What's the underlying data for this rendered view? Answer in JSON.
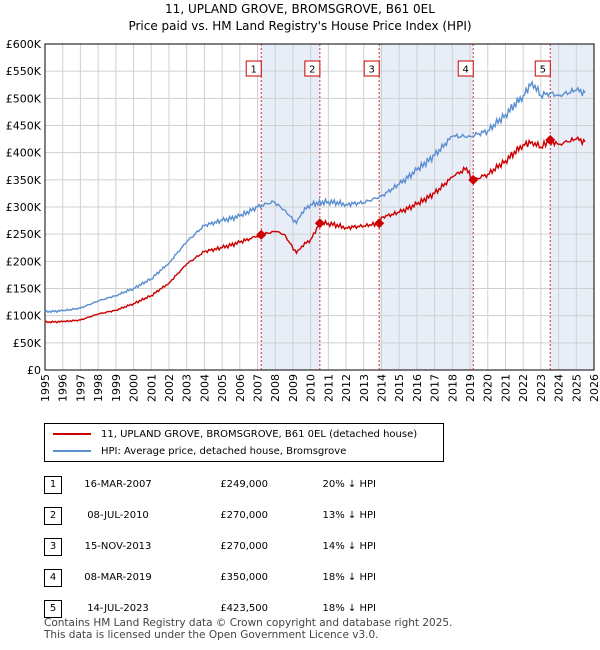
{
  "title_line1": "11, UPLAND GROVE, BROMSGROVE, B61 0EL",
  "title_line2": "Price paid vs. HM Land Registry's House Price Index (HPI)",
  "colors": {
    "property_line": "#cc0000",
    "hpi_line": "#5b8fd0",
    "band_fill": "#e8eef8",
    "grid": "#d0d0d0",
    "marker_vline": "#cc0000"
  },
  "legend": {
    "property_label": "11, UPLAND GROVE, BROMSGROVE, B61 0EL (detached house)",
    "hpi_label": "HPI: Average price, detached house, Bromsgrove"
  },
  "transactions": [
    {
      "num": "1",
      "date": "16-MAR-2007",
      "price": "£249,000",
      "hpi": "20% ↓ HPI"
    },
    {
      "num": "2",
      "date": "08-JUL-2010",
      "price": "£270,000",
      "hpi": "13% ↓ HPI"
    },
    {
      "num": "3",
      "date": "15-NOV-2013",
      "price": "£270,000",
      "hpi": "14% ↓ HPI"
    },
    {
      "num": "4",
      "date": "08-MAR-2019",
      "price": "£350,000",
      "hpi": "18% ↓ HPI"
    },
    {
      "num": "5",
      "date": "14-JUL-2023",
      "price": "£423,500",
      "hpi": "18% ↓ HPI"
    }
  ],
  "footer_line1": "Contains HM Land Registry data © Crown copyright and database right 2025.",
  "footer_line2": "This data is licensed under the Open Government Licence v3.0.",
  "chart_data": {
    "type": "line",
    "title": "11, UPLAND GROVE, BROMSGROVE, B61 0EL — Price paid vs. HM Land Registry's House Price Index (HPI)",
    "xlabel": "",
    "ylabel": "",
    "xlim": [
      1995,
      2026
    ],
    "ylim": [
      0,
      600000
    ],
    "grid": true,
    "x_ticks": [
      1995,
      1996,
      1997,
      1998,
      1999,
      2000,
      2001,
      2002,
      2003,
      2004,
      2005,
      2006,
      2007,
      2008,
      2009,
      2010,
      2011,
      2012,
      2013,
      2014,
      2015,
      2016,
      2017,
      2018,
      2019,
      2020,
      2021,
      2022,
      2023,
      2024,
      2025,
      2026
    ],
    "y_ticks": [
      0,
      50000,
      100000,
      150000,
      200000,
      250000,
      300000,
      350000,
      400000,
      450000,
      500000,
      550000,
      600000
    ],
    "y_tick_labels": [
      "£0",
      "£50K",
      "£100K",
      "£150K",
      "£200K",
      "£250K",
      "£300K",
      "£350K",
      "£400K",
      "£450K",
      "£500K",
      "£550K",
      "£600K"
    ],
    "shaded_bands": [
      [
        2007.21,
        2010.52
      ],
      [
        2013.87,
        2019.18
      ],
      [
        2023.53,
        2026
      ]
    ],
    "sales": [
      {
        "label": "1",
        "x": 2007.21,
        "y": 249000
      },
      {
        "label": "2",
        "x": 2010.52,
        "y": 270000
      },
      {
        "label": "3",
        "x": 2013.87,
        "y": 270000
      },
      {
        "label": "4",
        "x": 2019.18,
        "y": 350000
      },
      {
        "label": "5",
        "x": 2023.53,
        "y": 423500
      }
    ],
    "series": [
      {
        "name": "11, UPLAND GROVE, BROMSGROVE, B61 0EL (detached house)",
        "x": [
          1995,
          1996,
          1997,
          1998,
          1999,
          2000,
          2001,
          2002,
          2003,
          2004,
          2005,
          2006,
          2007.21,
          2008,
          2008.5,
          2009.2,
          2009.5,
          2010,
          2010.52,
          2011,
          2012,
          2013,
          2013.87,
          2014,
          2015,
          2016,
          2017,
          2018,
          2018.8,
          2019.18,
          2020,
          2021,
          2022,
          2022.5,
          2023,
          2023.53,
          2024,
          2024.5,
          2025,
          2025.5
        ],
        "values": [
          88000,
          89000,
          92000,
          103000,
          110000,
          122000,
          137000,
          160000,
          195000,
          218000,
          225000,
          235000,
          249000,
          255000,
          250000,
          215000,
          228000,
          240000,
          270000,
          270000,
          262000,
          265000,
          270000,
          281000,
          290000,
          305000,
          325000,
          355000,
          372000,
          350000,
          360000,
          385000,
          415000,
          420000,
          410000,
          423500,
          415000,
          420000,
          425000,
          420000
        ]
      },
      {
        "name": "HPI: Average price, detached house, Bromsgrove",
        "x": [
          1995,
          1996,
          1997,
          1998,
          1999,
          2000,
          2001,
          2002,
          2003,
          2004,
          2005,
          2006,
          2007,
          2007.9,
          2008.5,
          2009.2,
          2009.5,
          2010,
          2011,
          2012,
          2013,
          2014,
          2015,
          2016,
          2017,
          2018,
          2019,
          2020,
          2021,
          2022,
          2022.5,
          2023,
          2023.5,
          2024,
          2025,
          2025.5
        ],
        "values": [
          107000,
          109000,
          114000,
          127000,
          137000,
          150000,
          168000,
          197000,
          236000,
          266000,
          275000,
          283000,
          300000,
          310000,
          295000,
          270000,
          290000,
          305000,
          310000,
          305000,
          308000,
          320000,
          342000,
          368000,
          395000,
          430000,
          430000,
          440000,
          470000,
          505000,
          530000,
          505000,
          510000,
          505000,
          515000,
          510000
        ]
      }
    ]
  }
}
